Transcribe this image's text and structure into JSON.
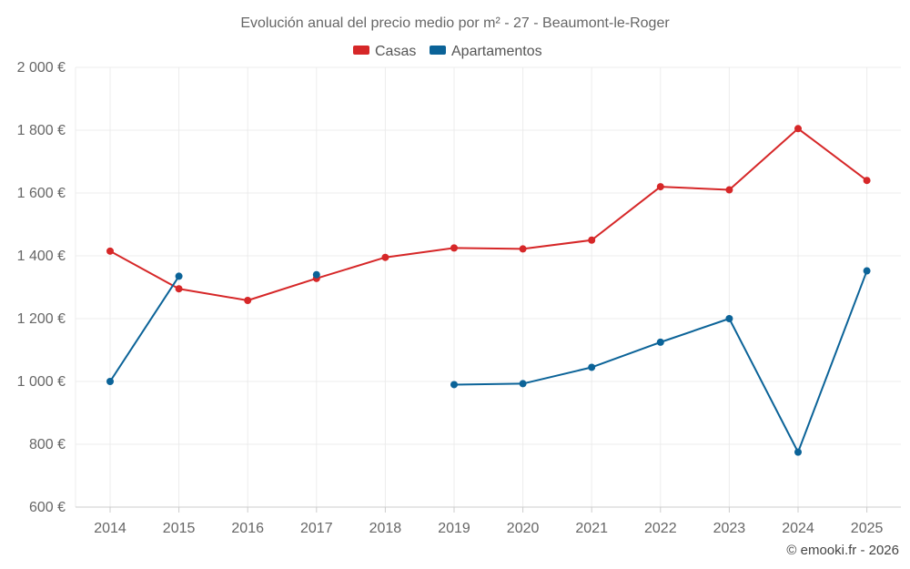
{
  "chart_data": {
    "type": "line",
    "title": "Evolución anual del precio medio por m² - 27 - Beaumont-le-Roger",
    "x": [
      "2014",
      "2015",
      "2016",
      "2017",
      "2018",
      "2019",
      "2020",
      "2021",
      "2022",
      "2023",
      "2024",
      "2025"
    ],
    "ylim": [
      600,
      2000
    ],
    "yticks": [
      600,
      800,
      1000,
      1200,
      1400,
      1600,
      1800,
      2000
    ],
    "ytick_labels": [
      "600 €",
      "800 €",
      "1 000 €",
      "1 200 €",
      "1 400 €",
      "1 600 €",
      "1 800 €",
      "2 000 €"
    ],
    "grid": true,
    "legend_position": "top-center",
    "series": [
      {
        "name": "Casas",
        "color": "#d62728",
        "values": [
          1415,
          1295,
          1258,
          1328,
          1395,
          1425,
          1422,
          1450,
          1620,
          1610,
          1805,
          1640
        ]
      },
      {
        "name": "Apartamentos",
        "color": "#0b6398",
        "values": [
          1000,
          1335,
          null,
          1340,
          null,
          990,
          993,
          1045,
          1125,
          1200,
          775,
          1352
        ]
      }
    ],
    "credit": "© emooki.fr - 2026"
  }
}
